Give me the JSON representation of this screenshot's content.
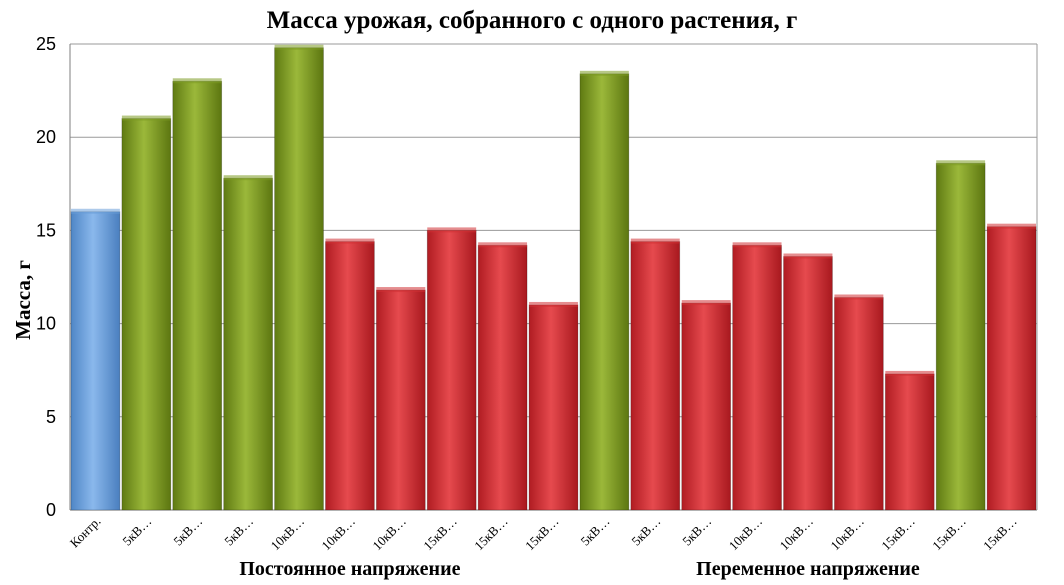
{
  "chart_data": {
    "type": "bar",
    "title": "Масса урожая, собранного с одного растения, г",
    "ylabel": "Масса, г",
    "xlabel": "",
    "ylim": [
      0,
      25
    ],
    "yticks": [
      0,
      5,
      10,
      15,
      20,
      25
    ],
    "grid": true,
    "legend": "none",
    "categories": [
      "Контр.",
      "5кВ…",
      "5кВ…",
      "5кВ…",
      "10кВ…",
      "10кВ…",
      "10кВ…",
      "15кВ…",
      "15кВ…",
      "15кВ…",
      "5кВ…",
      "5кВ…",
      "5кВ…",
      "10кВ…",
      "10кВ…",
      "10кВ…",
      "15кВ…",
      "15кВ…",
      "15кВ…"
    ],
    "values": [
      16,
      21,
      23,
      17.8,
      24.8,
      14.4,
      11.8,
      15,
      14.2,
      11,
      23.4,
      14.4,
      11.1,
      14.2,
      13.6,
      11.4,
      7.3,
      18.6,
      15.2
    ],
    "bar_colors": [
      "#6a9fd8",
      "#7c9a22",
      "#7c9a22",
      "#7c9a22",
      "#7c9a22",
      "#cf2f33",
      "#cf2f33",
      "#cf2f33",
      "#cf2f33",
      "#cf2f33",
      "#7c9a22",
      "#cf2f33",
      "#cf2f33",
      "#cf2f33",
      "#cf2f33",
      "#cf2f33",
      "#cf2f33",
      "#7c9a22",
      "#cf2f33"
    ],
    "group_labels": [
      {
        "label": "Постоянное напряжение",
        "from": 1,
        "to": 9
      },
      {
        "label": "Переменное напряжение",
        "from": 10,
        "to": 18
      }
    ]
  }
}
